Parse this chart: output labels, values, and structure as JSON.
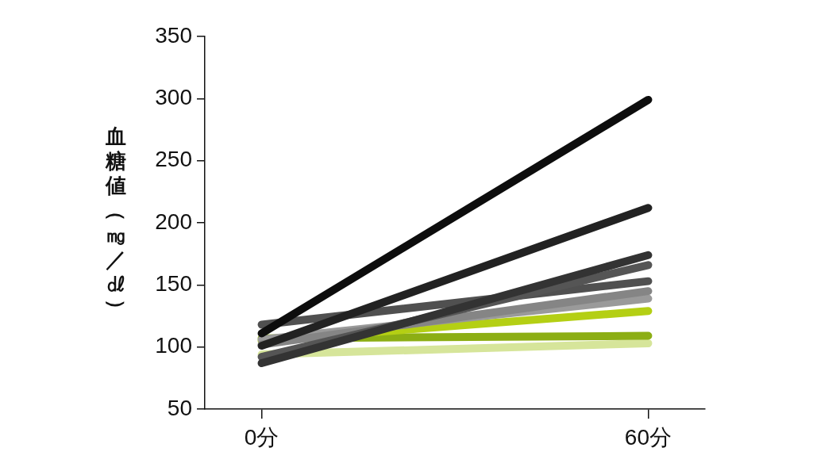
{
  "chart_data": {
    "type": "line",
    "ylabel": "血糖値（㎎／㎗）",
    "categories": [
      "0分",
      "60分"
    ],
    "ylim": [
      50,
      350
    ],
    "yticks": [
      50,
      100,
      150,
      200,
      250,
      300,
      350
    ],
    "series": [
      {
        "color": "#0d0d0d",
        "values": [
          111,
          299
        ]
      },
      {
        "color": "#222222",
        "values": [
          101,
          212
        ]
      },
      {
        "color": "#333333",
        "values": [
          87,
          174
        ]
      },
      {
        "color": "#555555",
        "values": [
          92,
          166
        ]
      },
      {
        "color": "#505050",
        "values": [
          118,
          153
        ]
      },
      {
        "color": "#858585",
        "values": [
          102,
          145
        ]
      },
      {
        "color": "#9a9a9a",
        "values": [
          106,
          139
        ]
      },
      {
        "color": "#b4cf14",
        "values": [
          105,
          129
        ]
      },
      {
        "color": "#8cae14",
        "values": [
          107,
          109
        ]
      },
      {
        "color": "#d6e59a",
        "values": [
          94,
          103
        ]
      }
    ]
  }
}
